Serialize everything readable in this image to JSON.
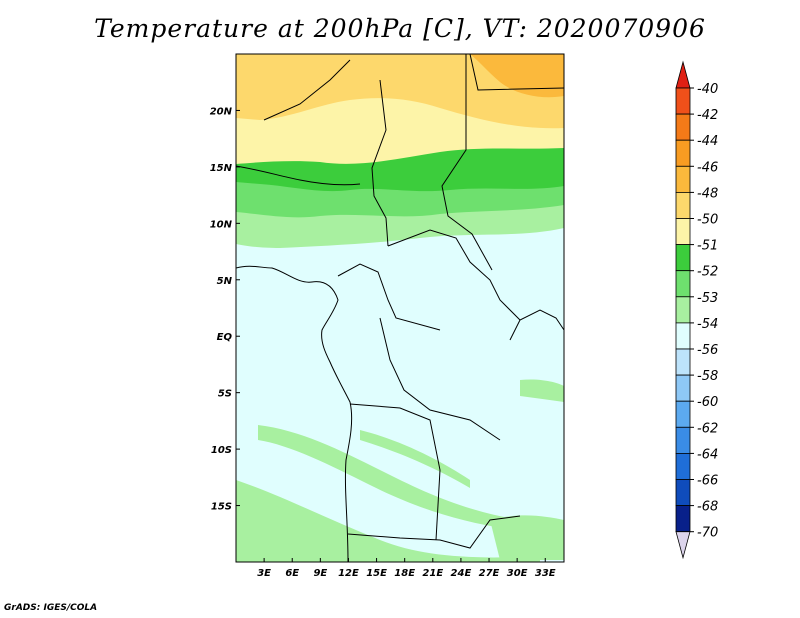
{
  "title": "Temperature at 200hPa [C], VT: 2020070906",
  "credit": "GrADS: IGES/COLA",
  "map": {
    "lon_range": [
      0,
      35
    ],
    "lat_range": [
      -20,
      25
    ],
    "lat_ticks": [
      {
        "value": 20,
        "label": "20N"
      },
      {
        "value": 15,
        "label": "15N"
      },
      {
        "value": 10,
        "label": "10N"
      },
      {
        "value": 5,
        "label": "5N"
      },
      {
        "value": 0,
        "label": "EQ"
      },
      {
        "value": -5,
        "label": "5S"
      },
      {
        "value": -10,
        "label": "10S"
      },
      {
        "value": -15,
        "label": "15S"
      }
    ],
    "lon_ticks": [
      {
        "value": 3,
        "label": "3E"
      },
      {
        "value": 6,
        "label": "6E"
      },
      {
        "value": 9,
        "label": "9E"
      },
      {
        "value": 12,
        "label": "12E"
      },
      {
        "value": 15,
        "label": "15E"
      },
      {
        "value": 18,
        "label": "18E"
      },
      {
        "value": 21,
        "label": "21E"
      },
      {
        "value": 24,
        "label": "24E"
      },
      {
        "value": 27,
        "label": "27E"
      },
      {
        "value": 30,
        "label": "30E"
      },
      {
        "value": 33,
        "label": "33E"
      }
    ]
  },
  "colorbar": {
    "labels": [
      "-40",
      "-42",
      "-44",
      "-46",
      "-48",
      "-50",
      "-51",
      "-52",
      "-53",
      "-54",
      "-56",
      "-58",
      "-60",
      "-62",
      "-64",
      "-66",
      "-68",
      "-70"
    ],
    "colors": [
      "#e8321c",
      "#f0501a",
      "#f47a18",
      "#f89c22",
      "#fbb93c",
      "#fdd86c",
      "#fdf4a8",
      "#3ccd3c",
      "#6ee06e",
      "#a8f0a0",
      "#e0fefe",
      "#bde3fb",
      "#8ec8f6",
      "#5caaf0",
      "#3a8ce6",
      "#1f6ed8",
      "#0f4cbc",
      "#08208a"
    ],
    "top_color": "#e02014",
    "bottom_color": "#dcd4ec"
  }
}
